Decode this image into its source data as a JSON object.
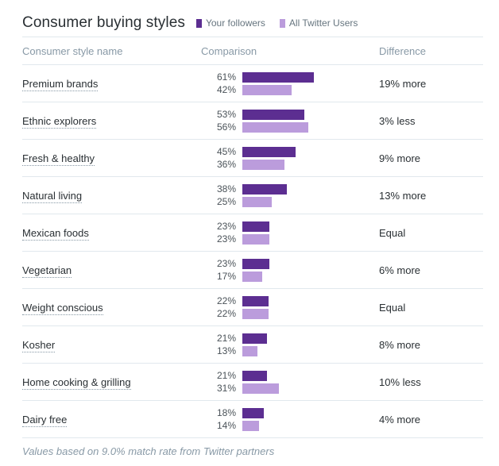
{
  "title": "Consumer buying styles",
  "legend": {
    "followers": {
      "label": "Your followers",
      "color": "#5C2E91"
    },
    "all_users": {
      "label": "All Twitter Users",
      "color": "#BB9CDC"
    }
  },
  "columns": {
    "name": "Consumer style name",
    "comparison": "Comparison",
    "difference": "Difference"
  },
  "footer": "Values based on 9.0% match rate from Twitter partners",
  "chart_data": {
    "type": "bar",
    "title": "Consumer buying styles",
    "series_names": [
      "Your followers",
      "All Twitter Users"
    ],
    "unit": "%",
    "xlim": [
      0,
      100
    ],
    "categories": [
      "Premium brands",
      "Ethnic explorers",
      "Fresh & healthy",
      "Natural living",
      "Mexican foods",
      "Vegetarian",
      "Weight conscious",
      "Kosher",
      "Home cooking & grilling",
      "Dairy free"
    ],
    "rows": [
      {
        "name": "Premium brands",
        "followers": 61,
        "all_users": 42,
        "difference": "19% more"
      },
      {
        "name": "Ethnic explorers",
        "followers": 53,
        "all_users": 56,
        "difference": "3% less"
      },
      {
        "name": "Fresh & healthy",
        "followers": 45,
        "all_users": 36,
        "difference": "9% more"
      },
      {
        "name": "Natural living",
        "followers": 38,
        "all_users": 25,
        "difference": "13% more"
      },
      {
        "name": "Mexican foods",
        "followers": 23,
        "all_users": 23,
        "difference": "Equal"
      },
      {
        "name": "Vegetarian",
        "followers": 23,
        "all_users": 17,
        "difference": "6% more"
      },
      {
        "name": "Weight conscious",
        "followers": 22,
        "all_users": 22,
        "difference": "Equal"
      },
      {
        "name": "Kosher",
        "followers": 21,
        "all_users": 13,
        "difference": "8% more"
      },
      {
        "name": "Home cooking & grilling",
        "followers": 21,
        "all_users": 31,
        "difference": "10% less"
      },
      {
        "name": "Dairy free",
        "followers": 18,
        "all_users": 14,
        "difference": "4% more"
      }
    ]
  }
}
